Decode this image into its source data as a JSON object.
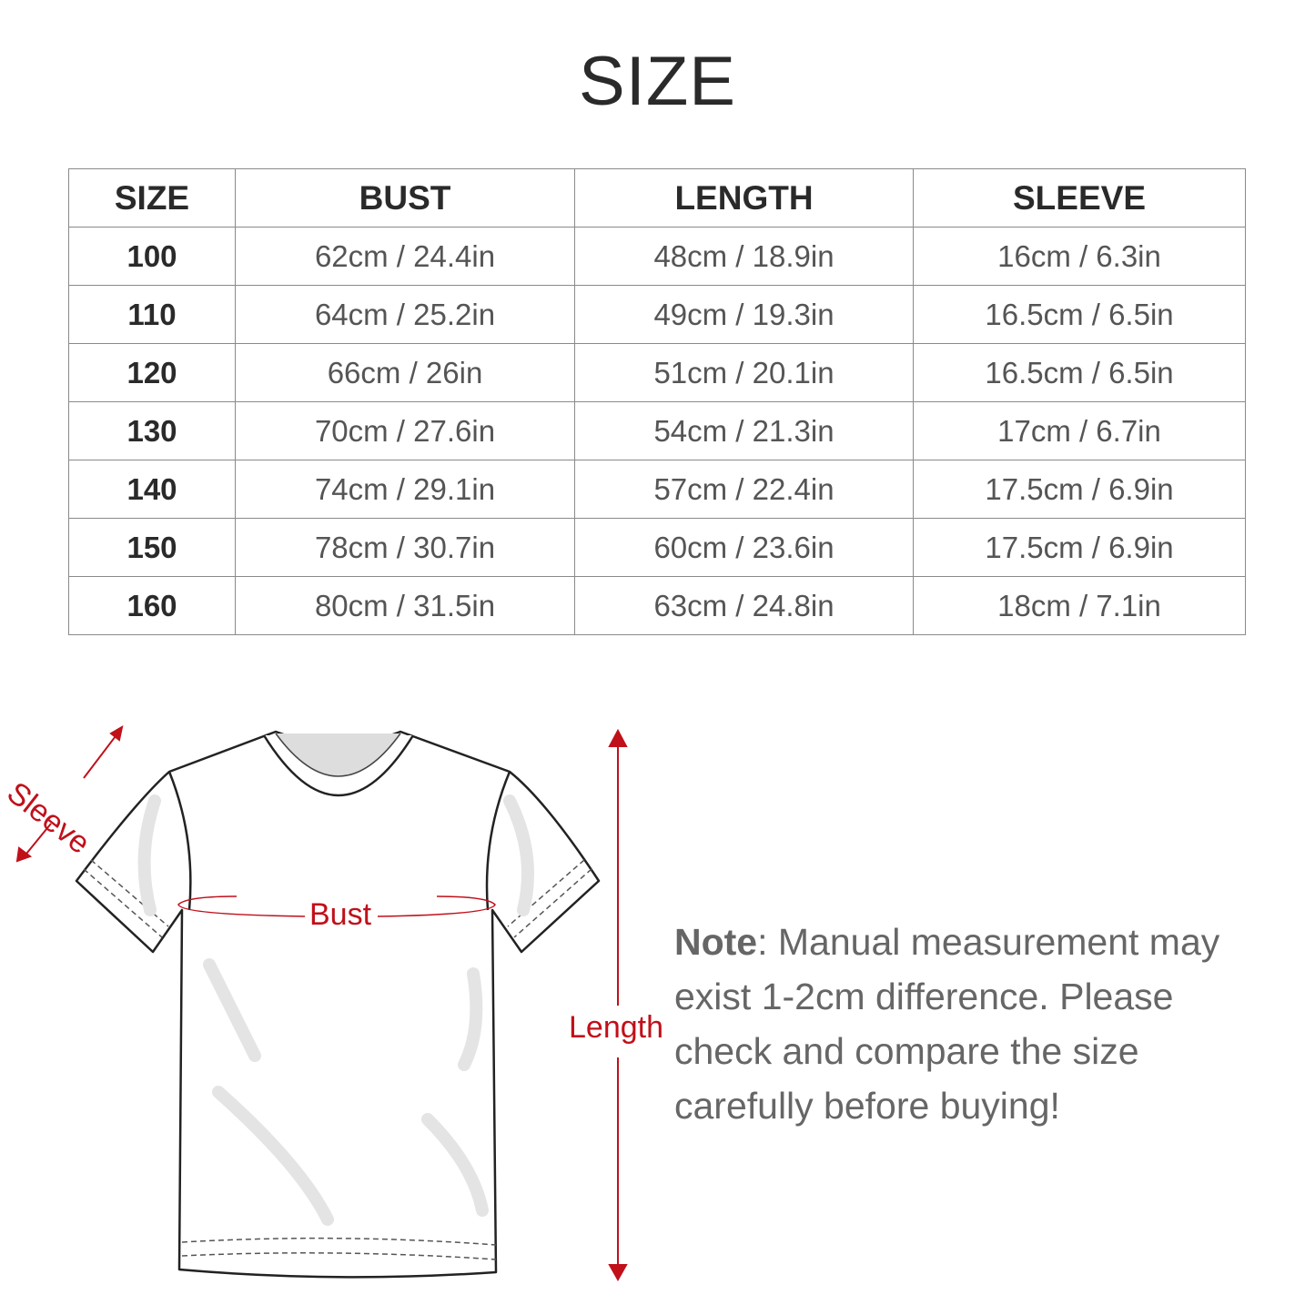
{
  "title": "SIZE",
  "table": {
    "headers": [
      "SIZE",
      "BUST",
      "LENGTH",
      "SLEEVE"
    ],
    "rows": [
      [
        "100",
        "62cm / 24.4in",
        "48cm / 18.9in",
        "16cm / 6.3in"
      ],
      [
        "110",
        "64cm / 25.2in",
        "49cm / 19.3in",
        "16.5cm / 6.5in"
      ],
      [
        "120",
        "66cm / 26in",
        "51cm / 20.1in",
        "16.5cm / 6.5in"
      ],
      [
        "130",
        "70cm / 27.6in",
        "54cm / 21.3in",
        "17cm / 6.7in"
      ],
      [
        "140",
        "74cm / 29.1in",
        "57cm / 22.4in",
        "17.5cm / 6.9in"
      ],
      [
        "150",
        "78cm / 30.7in",
        "60cm / 23.6in",
        "17.5cm / 6.9in"
      ],
      [
        "160",
        "80cm / 31.5in",
        "63cm / 24.8in",
        "18cm / 7.1in"
      ]
    ]
  },
  "diagram": {
    "sleeve_label": "Sleeve",
    "bust_label": "Bust",
    "length_label": "Length",
    "accent_color": "#c0101a"
  },
  "note": {
    "bold": "Note",
    "text": ": Manual measurement may exist 1-2cm difference. Please check and compare the size carefully before buying!"
  }
}
